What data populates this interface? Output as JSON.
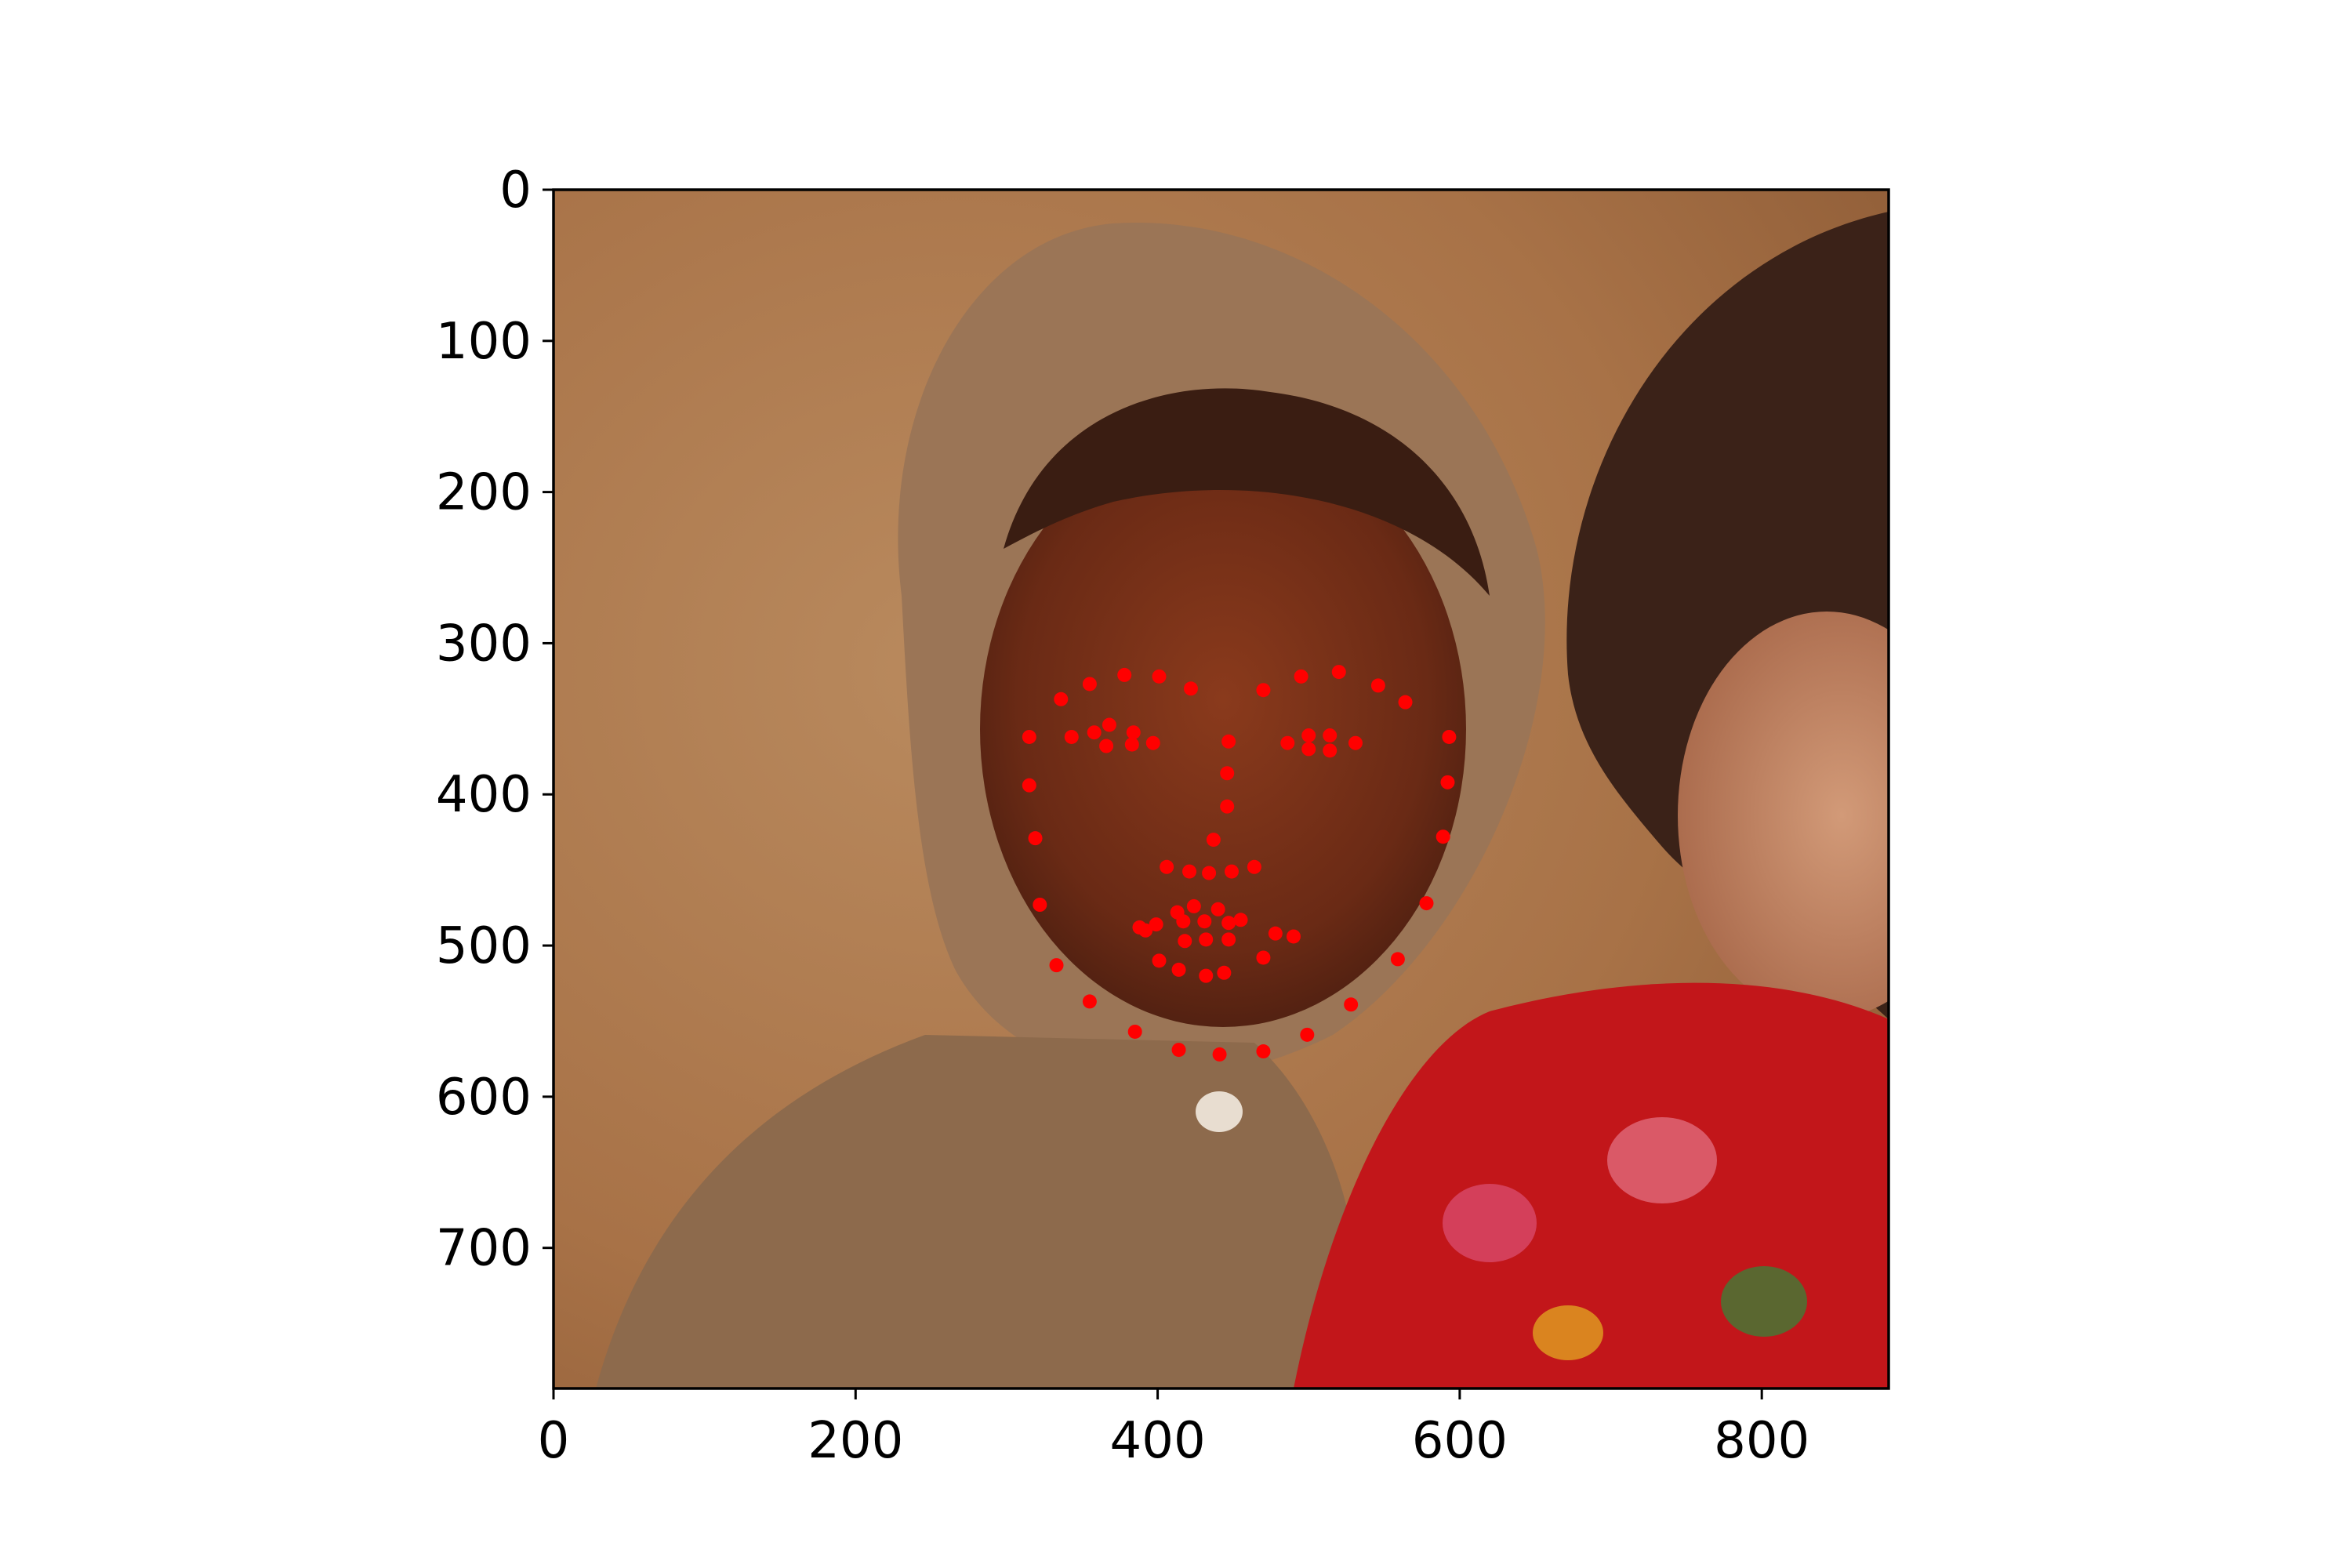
{
  "figure": {
    "description_hidden": ""
  },
  "colors": {
    "landmark": "#ff0000",
    "axis": "#000000",
    "background": "#ffffff"
  },
  "chart_data": {
    "type": "scatter",
    "title": "",
    "xlabel": "",
    "ylabel": "",
    "xlim": [
      0,
      884
    ],
    "ylim": [
      793,
      0
    ],
    "x_ticks": [
      0,
      200,
      400,
      600,
      800
    ],
    "y_ticks": [
      0,
      100,
      200,
      300,
      400,
      500,
      600,
      700
    ],
    "grid": false,
    "series": [
      {
        "marker_color": "#ff0000",
        "points": [
          [
            315,
            362
          ],
          [
            315,
            394
          ],
          [
            319,
            429
          ],
          [
            322,
            473
          ],
          [
            333,
            513
          ],
          [
            355,
            537
          ],
          [
            385,
            557
          ],
          [
            414,
            569
          ],
          [
            441,
            572
          ],
          [
            470,
            570
          ],
          [
            499,
            559
          ],
          [
            528,
            539
          ],
          [
            559,
            509
          ],
          [
            578,
            472
          ],
          [
            589,
            428
          ],
          [
            592,
            392
          ],
          [
            593,
            362
          ],
          [
            336,
            337
          ],
          [
            355,
            327
          ],
          [
            378,
            321
          ],
          [
            401,
            322
          ],
          [
            422,
            330
          ],
          [
            470,
            331
          ],
          [
            495,
            322
          ],
          [
            520,
            319
          ],
          [
            546,
            328
          ],
          [
            564,
            339
          ],
          [
            447,
            365
          ],
          [
            446,
            386
          ],
          [
            446,
            408
          ],
          [
            437,
            430
          ],
          [
            406,
            448
          ],
          [
            421,
            451
          ],
          [
            434,
            452
          ],
          [
            449,
            451
          ],
          [
            464,
            448
          ],
          [
            343,
            362
          ],
          [
            358,
            359
          ],
          [
            368,
            354
          ],
          [
            384,
            359
          ],
          [
            397,
            366
          ],
          [
            366,
            368
          ],
          [
            383,
            367
          ],
          [
            486,
            366
          ],
          [
            500,
            361
          ],
          [
            514,
            361
          ],
          [
            531,
            366
          ],
          [
            514,
            371
          ],
          [
            500,
            370
          ],
          [
            388,
            488
          ],
          [
            399,
            486
          ],
          [
            413,
            478
          ],
          [
            424,
            474
          ],
          [
            440,
            476
          ],
          [
            455,
            483
          ],
          [
            478,
            492
          ],
          [
            490,
            494
          ],
          [
            470,
            508
          ],
          [
            444,
            518
          ],
          [
            432,
            520
          ],
          [
            414,
            516
          ],
          [
            401,
            510
          ],
          [
            392,
            490
          ],
          [
            417,
            484
          ],
          [
            431,
            484
          ],
          [
            447,
            485
          ],
          [
            418,
            497
          ],
          [
            432,
            496
          ],
          [
            447,
            496
          ]
        ]
      }
    ]
  }
}
